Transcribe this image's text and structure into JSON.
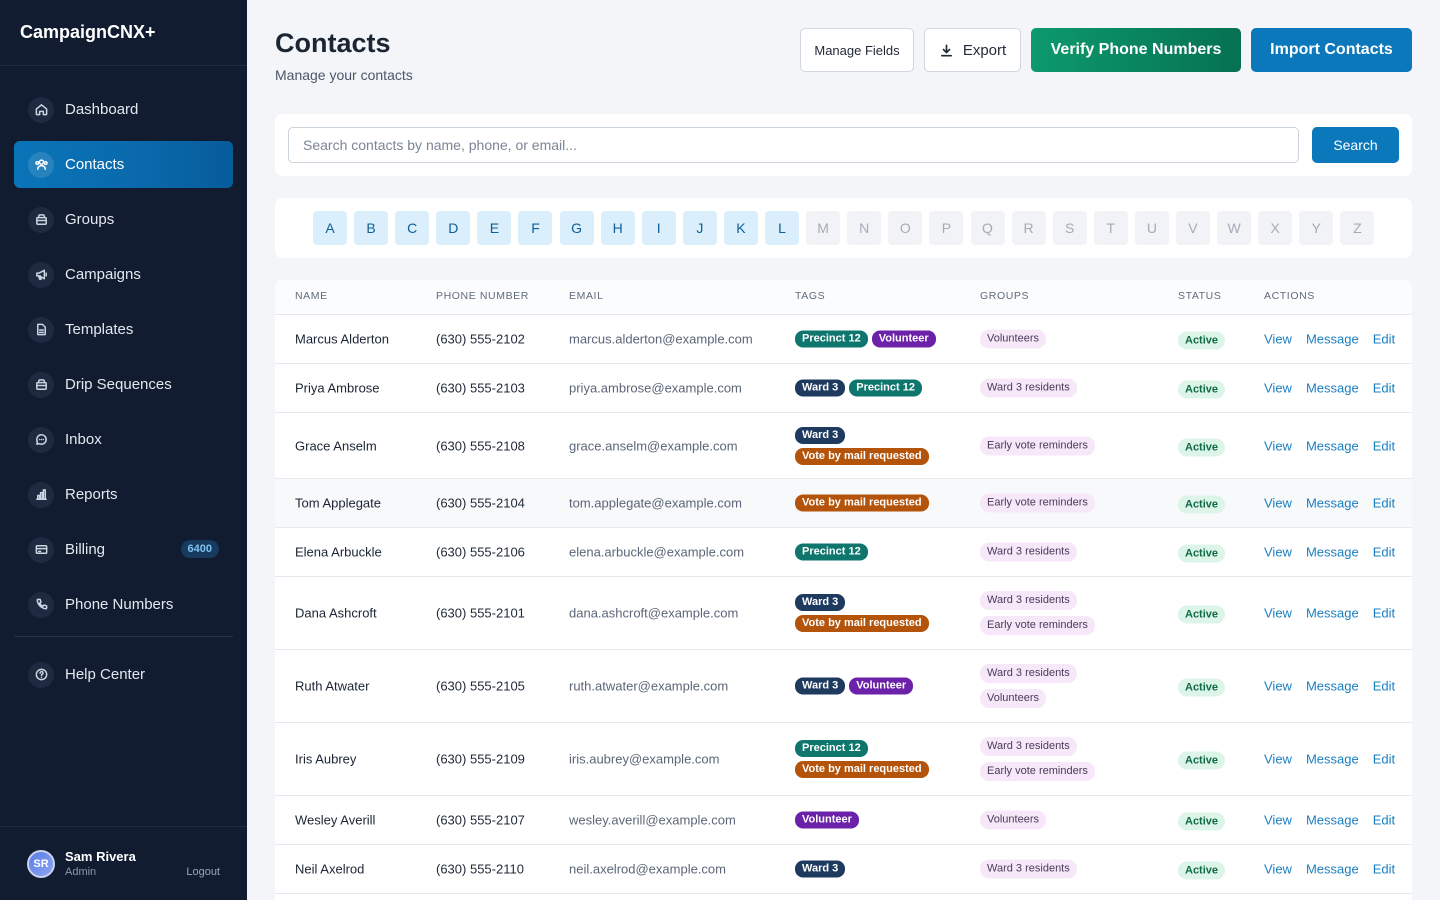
{
  "app": {
    "name": "CampaignCNX+"
  },
  "sidebar": {
    "items": [
      {
        "label": "Dashboard",
        "icon": "home-icon"
      },
      {
        "label": "Contacts",
        "icon": "users-icon",
        "active": true
      },
      {
        "label": "Groups",
        "icon": "folder-icon"
      },
      {
        "label": "Campaigns",
        "icon": "megaphone-icon"
      },
      {
        "label": "Templates",
        "icon": "document-icon"
      },
      {
        "label": "Drip Sequences",
        "icon": "layers-icon"
      },
      {
        "label": "Inbox",
        "icon": "chat-icon"
      },
      {
        "label": "Reports",
        "icon": "bar-chart-icon"
      },
      {
        "label": "Billing",
        "icon": "credit-card-icon",
        "badge": "6400"
      },
      {
        "label": "Phone Numbers",
        "icon": "phone-icon"
      }
    ],
    "help": {
      "label": "Help Center",
      "icon": "help-circle-icon"
    },
    "user": {
      "initials": "SR",
      "name": "Sam Rivera",
      "role": "Admin",
      "logout": "Logout"
    }
  },
  "header": {
    "title": "Contacts",
    "subtitle": "Manage your contacts",
    "manage_fields": "Manage Fields",
    "export": "Export",
    "verify": "Verify Phone Numbers",
    "import": "Import Contacts"
  },
  "search": {
    "placeholder": "Search contacts by name, phone, or email...",
    "button": "Search"
  },
  "alphabet": {
    "letters": [
      "A",
      "B",
      "C",
      "D",
      "E",
      "F",
      "G",
      "H",
      "I",
      "J",
      "K",
      "L",
      "M",
      "N",
      "O",
      "P",
      "Q",
      "R",
      "S",
      "T",
      "U",
      "V",
      "W",
      "X",
      "Y",
      "Z"
    ],
    "enabled_through": "L"
  },
  "table": {
    "columns": [
      "NAME",
      "PHONE NUMBER",
      "EMAIL",
      "TAGS",
      "GROUPS",
      "STATUS",
      "ACTIONS"
    ],
    "actions": [
      "View",
      "Message",
      "Edit"
    ],
    "tag_colors": {
      "Precinct 12": "#0f766e",
      "Volunteer": "#6b21a8",
      "Ward 3": "#1e3a5f",
      "Vote by mail requested": "#b4530a"
    },
    "rows": [
      {
        "name": "Marcus Alderton",
        "phone": "(630) 555-2102",
        "email": "marcus.alderton@example.com",
        "tags": [
          [
            "Precinct 12",
            "Volunteer"
          ]
        ],
        "groups": [
          "Volunteers"
        ],
        "status": "Active"
      },
      {
        "name": "Priya Ambrose",
        "phone": "(630) 555-2103",
        "email": "priya.ambrose@example.com",
        "tags": [
          [
            "Ward 3",
            "Precinct 12"
          ]
        ],
        "groups": [
          "Ward 3 residents"
        ],
        "status": "Active"
      },
      {
        "name": "Grace Anselm",
        "phone": "(630) 555-2108",
        "email": "grace.anselm@example.com",
        "tags": [
          [
            "Ward 3"
          ],
          [
            "Vote by mail requested"
          ]
        ],
        "groups": [
          "Early vote reminders"
        ],
        "status": "Active"
      },
      {
        "name": "Tom Applegate",
        "phone": "(630) 555-2104",
        "email": "tom.applegate@example.com",
        "tags": [
          [
            "Vote by mail requested"
          ]
        ],
        "groups": [
          "Early vote reminders"
        ],
        "status": "Active"
      },
      {
        "name": "Elena Arbuckle",
        "phone": "(630) 555-2106",
        "email": "elena.arbuckle@example.com",
        "tags": [
          [
            "Precinct 12"
          ]
        ],
        "groups": [
          "Ward 3 residents"
        ],
        "status": "Active"
      },
      {
        "name": "Dana Ashcroft",
        "phone": "(630) 555-2101",
        "email": "dana.ashcroft@example.com",
        "tags": [
          [
            "Ward 3"
          ],
          [
            "Vote by mail requested"
          ]
        ],
        "groups": [
          "Ward 3 residents",
          "Early vote reminders"
        ],
        "status": "Active"
      },
      {
        "name": "Ruth Atwater",
        "phone": "(630) 555-2105",
        "email": "ruth.atwater@example.com",
        "tags": [
          [
            "Ward 3",
            "Volunteer"
          ]
        ],
        "groups": [
          "Ward 3 residents",
          "Volunteers"
        ],
        "status": "Active"
      },
      {
        "name": "Iris Aubrey",
        "phone": "(630) 555-2109",
        "email": "iris.aubrey@example.com",
        "tags": [
          [
            "Precinct 12"
          ],
          [
            "Vote by mail requested"
          ]
        ],
        "groups": [
          "Ward 3 residents",
          "Early vote reminders"
        ],
        "status": "Active"
      },
      {
        "name": "Wesley Averill",
        "phone": "(630) 555-2107",
        "email": "wesley.averill@example.com",
        "tags": [
          [
            "Volunteer"
          ]
        ],
        "groups": [
          "Volunteers"
        ],
        "status": "Active"
      },
      {
        "name": "Neil Axelrod",
        "phone": "(630) 555-2110",
        "email": "neil.axelrod@example.com",
        "tags": [
          [
            "Ward 3"
          ]
        ],
        "groups": [
          "Ward 3 residents"
        ],
        "status": "Active"
      }
    ]
  },
  "colors": {
    "accent": "#0b78bb",
    "sidebar": "#111c30",
    "verify": "#0d9a6c"
  }
}
